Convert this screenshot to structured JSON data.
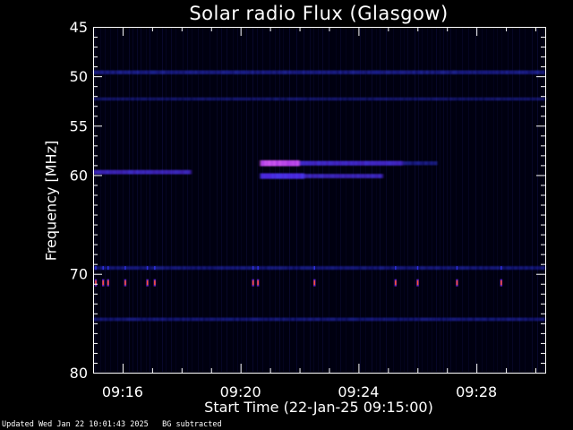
{
  "title": "Solar radio Flux (Glasgow)",
  "footer": "Updated Wed Jan 22 10:01:43 2025   BG subtracted",
  "chart_data": {
    "type": "heatmap",
    "title": "Solar radio Flux (Glasgow)",
    "xlabel": "Start Time (22-Jan-25 09:15:00)",
    "ylabel": "Frequency [MHz]",
    "x_unit": "minutes",
    "xlim": [
      "09:15:00",
      "09:30:20"
    ],
    "ylim": [
      45,
      80
    ],
    "y_ticks": [
      45,
      50,
      55,
      60,
      70,
      80
    ],
    "x_ticks": [
      "09:16",
      "09:20",
      "09:24",
      "09:28"
    ],
    "background_color": "#000010",
    "colors": {
      "axes": "#ffffff",
      "weak": "#1a1aa8",
      "medium": "#5a2aff",
      "strong": "#c040ff",
      "peak": "#ff5030"
    },
    "features": [
      {
        "kind": "band",
        "t_start": "09:15:00",
        "t_end": "09:30:20",
        "f_mhz": 49.6,
        "intensity": 0.35
      },
      {
        "kind": "band",
        "t_start": "09:15:00",
        "t_end": "09:18:20",
        "f_mhz": 59.7,
        "intensity": 0.45
      },
      {
        "kind": "band",
        "t_start": "09:20:40",
        "t_end": "09:22:00",
        "f_mhz": 58.8,
        "intensity": 0.9
      },
      {
        "kind": "band",
        "t_start": "09:20:40",
        "t_end": "09:22:10",
        "f_mhz": 60.1,
        "intensity": 0.8
      },
      {
        "kind": "band",
        "t_start": "09:22:00",
        "t_end": "09:25:30",
        "f_mhz": 58.8,
        "intensity": 0.55
      },
      {
        "kind": "band",
        "t_start": "09:22:10",
        "t_end": "09:24:50",
        "f_mhz": 60.1,
        "intensity": 0.45
      },
      {
        "kind": "band",
        "t_start": "09:25:30",
        "t_end": "09:26:40",
        "f_mhz": 58.8,
        "intensity": 0.35
      },
      {
        "kind": "band",
        "t_start": "09:15:00",
        "t_end": "09:30:20",
        "f_mhz": 69.4,
        "intensity": 0.25
      },
      {
        "kind": "band",
        "t_start": "09:15:00",
        "t_end": "09:30:20",
        "f_mhz": 74.6,
        "intensity": 0.2
      },
      {
        "kind": "band",
        "t_start": "09:15:00",
        "t_end": "09:30:20",
        "f_mhz": 52.3,
        "intensity": 0.12
      },
      {
        "kind": "spikes",
        "f_mhz": 70.9,
        "times": [
          "09:15:05",
          "09:15:20",
          "09:15:30",
          "09:16:05",
          "09:16:50",
          "09:17:05",
          "09:20:25",
          "09:20:35",
          "09:22:30",
          "09:25:15",
          "09:26:00",
          "09:27:20",
          "09:28:50"
        ]
      }
    ]
  }
}
